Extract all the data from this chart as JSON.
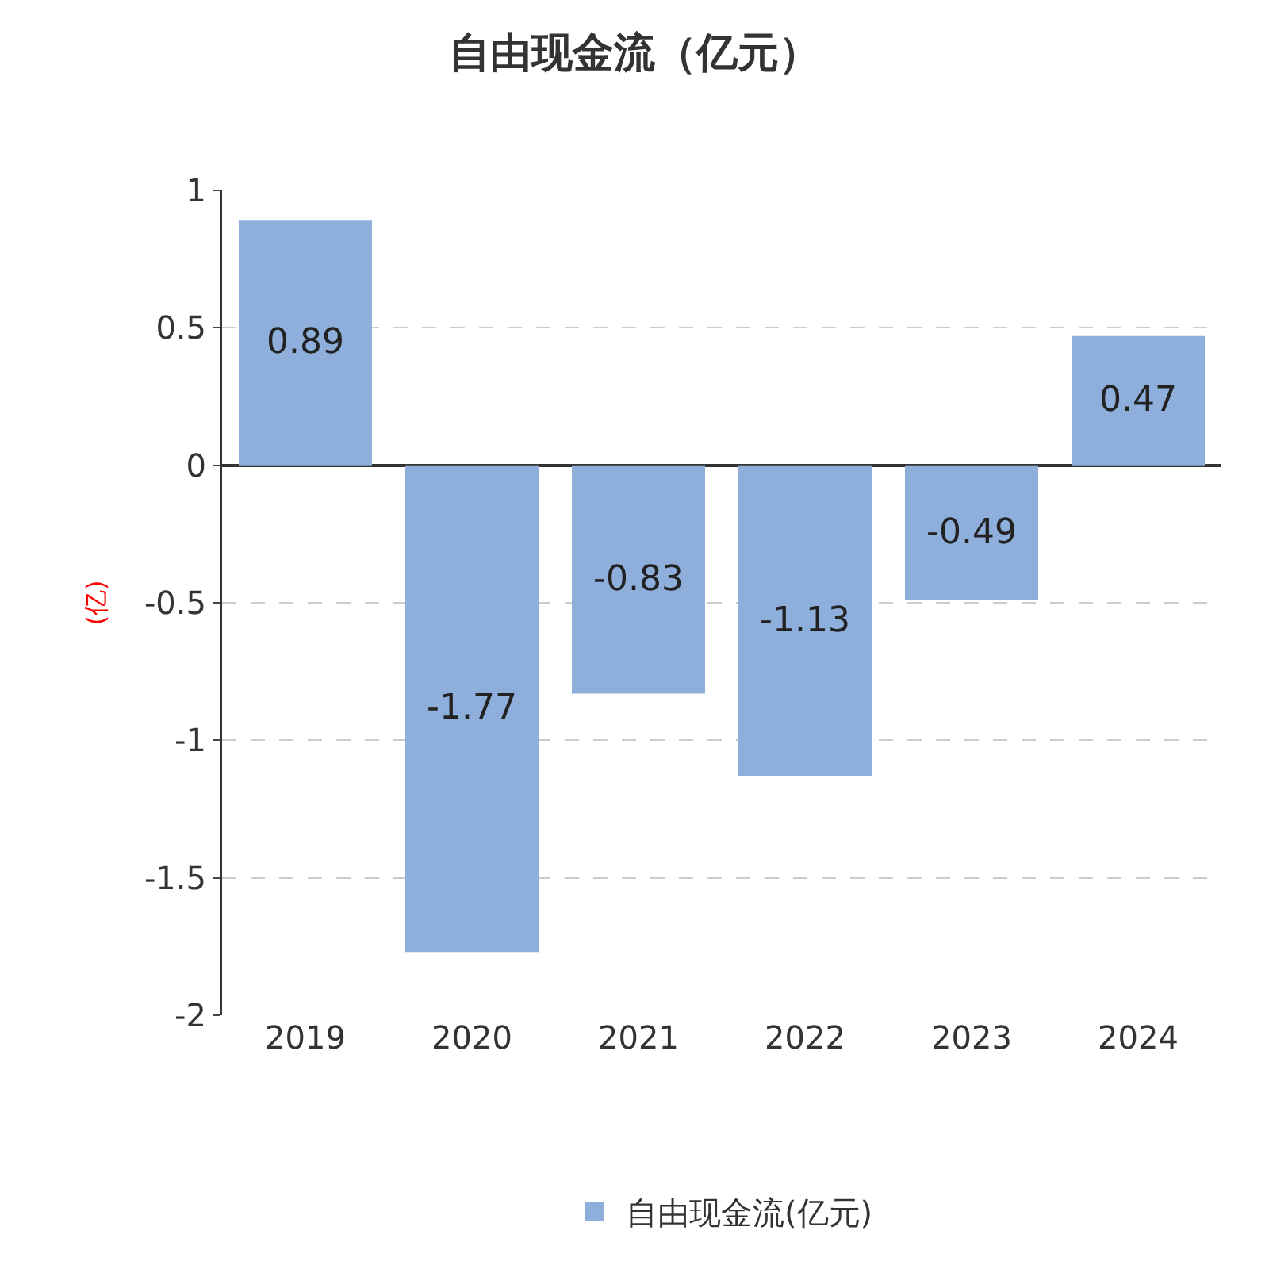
{
  "chart_data": {
    "type": "bar",
    "title": "自由现金流（亿元）",
    "ylabel": "(亿)",
    "categories": [
      "2019",
      "2020",
      "2021",
      "2022",
      "2023",
      "2024"
    ],
    "series": [
      {
        "name": "自由现金流(亿元)",
        "color": "#8eaedb",
        "values": [
          0.89,
          -1.77,
          -0.83,
          -1.13,
          -0.49,
          0.47
        ]
      }
    ],
    "ylim": [
      -2,
      1
    ],
    "yticks": [
      -2,
      -1.5,
      -1,
      -0.5,
      0,
      0.5,
      1
    ],
    "grid": "y",
    "legend": "bottom",
    "data_labels": true
  }
}
